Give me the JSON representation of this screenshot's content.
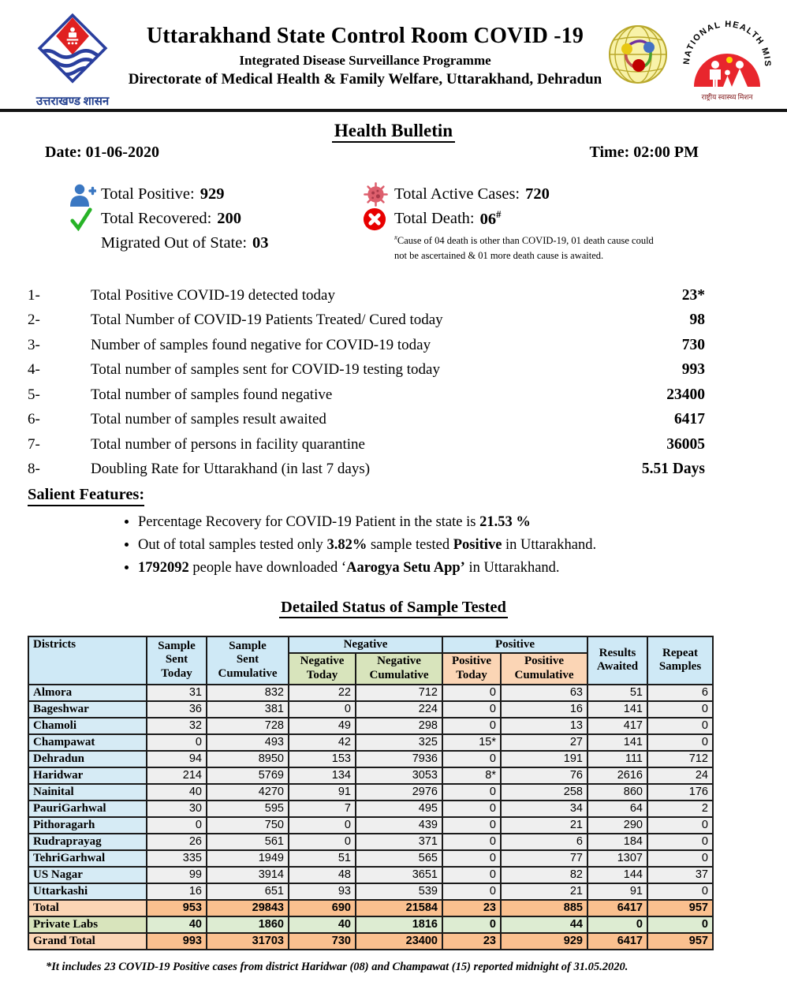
{
  "header": {
    "org_caption": "उत्तराखण्ड शासन",
    "title": "Uttarakhand State Control Room COVID -19",
    "subtitle": "Integrated Disease Surveillance Programme",
    "directorate": "Directorate of Medical Health & Family Welfare, Uttarakhand, Dehradun",
    "nhm_arc_text": "NATIONAL HEALTH MISSION",
    "nhm_caption": "राष्ट्रीय स्वास्थ्य मिशन"
  },
  "bulletin": {
    "title": "Health Bulletin",
    "date": "Date: 01-06-2020",
    "time": "Time: 02:00 PM"
  },
  "summary": {
    "left": [
      {
        "icon": "person-plus-icon",
        "label": "Total Positive:",
        "value": "929"
      },
      {
        "icon": "check-icon",
        "label": "Total Recovered:",
        "value": "200"
      },
      {
        "icon": "",
        "label": "Migrated Out of State:",
        "value": "03"
      }
    ],
    "right": [
      {
        "icon": "virus-icon",
        "label": "Total Active Cases:",
        "value": "720",
        "sup": ""
      },
      {
        "icon": "cross-circle-icon",
        "label": "Total Death:",
        "value": "06",
        "sup": "#"
      }
    ],
    "death_note_sup": "#",
    "death_note": "Cause of 04 death is other than COVID-19, 01 death cause could  not be ascertained & 01 more death cause is awaited."
  },
  "stats": [
    {
      "num": "1-",
      "label": "Total Positive COVID-19 detected today",
      "value": "23*"
    },
    {
      "num": "2-",
      "label": "Total Number of COVID-19 Patients Treated/ Cured today",
      "value": "98"
    },
    {
      "num": "3-",
      "label": "Number of samples found negative for COVID-19 today",
      "value": "730"
    },
    {
      "num": "4-",
      "label": "Total number of samples sent for COVID-19 testing today",
      "value": "993"
    },
    {
      "num": "5-",
      "label": "Total number of samples found negative",
      "value": "23400"
    },
    {
      "num": "6-",
      "label": "Total number of samples result awaited",
      "value": "6417"
    },
    {
      "num": "7-",
      "label": "Total number of persons in facility quarantine",
      "value": "36005"
    },
    {
      "num": "8-",
      "label": "Doubling Rate for Uttarakhand (in last 7 days)",
      "value": "5.51 Days"
    }
  ],
  "salient": {
    "heading": "Salient Features:",
    "bullets": [
      [
        {
          "text": "Percentage Recovery for COVID-19 Patient in the state is "
        },
        {
          "text": "21.53 %",
          "bold": true
        }
      ],
      [
        {
          "text": "Out of total samples tested only "
        },
        {
          "text": "3.82%",
          "bold": true
        },
        {
          "text": " sample tested "
        },
        {
          "text": "Positive",
          "bold": true
        },
        {
          "text": " in Uttarakhand."
        }
      ],
      [
        {
          "text": "1792092",
          "bold": true
        },
        {
          "text": " people have downloaded ‘"
        },
        {
          "text": "Aarogya Setu App’",
          "bold": true
        },
        {
          "text": " in Uttarakhand."
        }
      ]
    ]
  },
  "table": {
    "title": "Detailed Status of Sample Tested",
    "headers": {
      "districts": "Districts",
      "sample_sent_today": "Sample\nSent\nToday",
      "sample_sent_cumulative": "Sample\nSent\nCumulative",
      "negative_group": "Negative",
      "negative_today": "Negative\nToday",
      "negative_cumulative": "Negative\nCumulative",
      "positive_group": "Positive",
      "positive_today": "Positive\nToday",
      "positive_cumulative": "Positive\nCumulative",
      "results_awaited": "Results\nAwaited",
      "repeat_samples": "Repeat\nSamples"
    },
    "rows": [
      {
        "district": "Almora",
        "values": [
          "31",
          "832",
          "22",
          "712",
          "0",
          "63",
          "51",
          "6"
        ]
      },
      {
        "district": "Bageshwar",
        "values": [
          "36",
          "381",
          "0",
          "224",
          "0",
          "16",
          "141",
          "0"
        ]
      },
      {
        "district": "Chamoli",
        "values": [
          "32",
          "728",
          "49",
          "298",
          "0",
          "13",
          "417",
          "0"
        ]
      },
      {
        "district": "Champawat",
        "values": [
          "0",
          "493",
          "42",
          "325",
          "15*",
          "27",
          "141",
          "0"
        ]
      },
      {
        "district": "Dehradun",
        "values": [
          "94",
          "8950",
          "153",
          "7936",
          "0",
          "191",
          "111",
          "712"
        ]
      },
      {
        "district": "Haridwar",
        "values": [
          "214",
          "5769",
          "134",
          "3053",
          "8*",
          "76",
          "2616",
          "24"
        ]
      },
      {
        "district": "Nainital",
        "values": [
          "40",
          "4270",
          "91",
          "2976",
          "0",
          "258",
          "860",
          "176"
        ]
      },
      {
        "district": "PauriGarhwal",
        "values": [
          "30",
          "595",
          "7",
          "495",
          "0",
          "34",
          "64",
          "2"
        ]
      },
      {
        "district": "Pithoragarh",
        "values": [
          "0",
          "750",
          "0",
          "439",
          "0",
          "21",
          "290",
          "0"
        ]
      },
      {
        "district": "Rudraprayag",
        "values": [
          "26",
          "561",
          "0",
          "371",
          "0",
          "6",
          "184",
          "0"
        ]
      },
      {
        "district": "TehriGarhwal",
        "values": [
          "335",
          "1949",
          "51",
          "565",
          "0",
          "77",
          "1307",
          "0"
        ]
      },
      {
        "district": "US Nagar",
        "values": [
          "99",
          "3914",
          "48",
          "3651",
          "0",
          "82",
          "144",
          "37"
        ]
      },
      {
        "district": "Uttarkashi",
        "values": [
          "16",
          "651",
          "93",
          "539",
          "0",
          "21",
          "91",
          "0"
        ]
      }
    ],
    "totals": [
      {
        "label": "Total",
        "style": "orange",
        "values": [
          "953",
          "29843",
          "690",
          "21584",
          "23",
          "885",
          "6417",
          "957"
        ]
      },
      {
        "label": "Private Labs",
        "style": "green",
        "values": [
          "40",
          "1860",
          "40",
          "1816",
          "0",
          "44",
          "0",
          "0"
        ]
      },
      {
        "label": "Grand Total",
        "style": "orange",
        "values": [
          "993",
          "31703",
          "730",
          "23400",
          "23",
          "929",
          "6417",
          "957"
        ]
      }
    ],
    "footnote": "*It includes 23 COVID-19 Positive cases from district  Haridwar (08) and Champawat (15) reported midnight of  31.05.2020."
  },
  "colors": {
    "table_header_blue": "#cfe9f6",
    "table_green": "#d8e4bc",
    "table_orange_light": "#fbd5b5",
    "table_orange": "#fac08f",
    "table_cell_gray": "#efefef",
    "district_cell_blue": "#d6ebf5",
    "positive_icon_blue": "#3a77c2",
    "recovered_check_green": "#27b327",
    "active_virus_red": "#dd5f6d",
    "death_cross_red": "#e80000",
    "nhm_red": "#e8262d",
    "emblem_blue": "#2a3f9e",
    "emblem_red": "#e02020"
  }
}
